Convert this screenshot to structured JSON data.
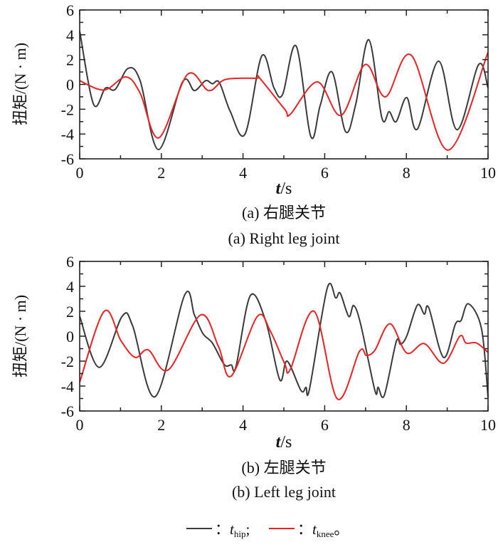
{
  "colors": {
    "hip": "#3a3a3a",
    "knee": "#ee2222"
  },
  "legend": {
    "hip_prefix": "：",
    "hip_var": "t",
    "hip_sub": "hip",
    "hip_suffix": ";",
    "knee_prefix": "：",
    "knee_var": "t",
    "knee_sub": "knee",
    "knee_suffix": "。"
  },
  "chart_data": [
    {
      "type": "line",
      "title": "(a) 右腿关节",
      "subtitle": "(a) Right leg joint",
      "xlabel_var": "t",
      "xlabel_unit": "/s",
      "ylabel": "扭矩/(N · m)",
      "xlim": [
        0,
        10
      ],
      "ylim": [
        -6,
        6
      ],
      "xticks": [
        "0",
        "2",
        "4",
        "6",
        "8",
        "10"
      ],
      "yticks": [
        "-6",
        "-4",
        "-2",
        "0",
        "2",
        "4",
        "6"
      ],
      "series": [
        {
          "name": "t_hip",
          "x": [
            0,
            0.34,
            0.63,
            0.87,
            1.19,
            1.48,
            1.93,
            2.52,
            2.81,
            3.08,
            3.25,
            3.42,
            3.69,
            4.05,
            4.46,
            4.76,
            4.97,
            5.3,
            5.66,
            5.89,
            6.18,
            6.51,
            6.76,
            7.08,
            7.4,
            7.58,
            7.75,
            8.01,
            8.27,
            8.79,
            9.24,
            9.77,
            10
          ],
          "y": [
            4.3,
            -1.6,
            -0.3,
            -0.4,
            1.3,
            0.3,
            -5.25,
            0.2,
            -0.5,
            0.3,
            0.05,
            0.15,
            -2.2,
            -4.0,
            2.3,
            -0.3,
            -0.8,
            3.1,
            -4.2,
            -1.7,
            1.0,
            -3.8,
            -1.6,
            3.6,
            -2.7,
            -2.2,
            -3.0,
            -1.06,
            -3.6,
            1.87,
            -3.65,
            1.6,
            -0.3
          ]
        },
        {
          "name": "t_knee",
          "x": [
            0,
            0.6,
            1.13,
            1.48,
            1.94,
            2.64,
            3.16,
            3.57,
            4.33,
            4.41,
            5.02,
            5.16,
            5.82,
            6.4,
            6.99,
            7.49,
            8.12,
            9.02,
            10
          ],
          "y": [
            0.3,
            -0.45,
            0.6,
            -0.7,
            -4.3,
            0.8,
            -0.5,
            0.4,
            0.5,
            0.5,
            -2.0,
            -2.4,
            0.2,
            -2.5,
            1.6,
            -1.0,
            2.35,
            -5.3,
            2.6
          ]
        }
      ]
    },
    {
      "type": "line",
      "title": "(b) 左腿关节",
      "subtitle": "(b) Left leg joint",
      "xlabel_var": "t",
      "xlabel_unit": "/s",
      "ylabel": "扭矩/(N · m)",
      "xlim": [
        0,
        10
      ],
      "ylim": [
        -6,
        6
      ],
      "xticks": [
        "0",
        "2",
        "4",
        "6",
        "8",
        "10"
      ],
      "yticks": [
        "-6",
        "-4",
        "-2",
        "0",
        "2",
        "4",
        "6"
      ],
      "series": [
        {
          "name": "t_hip",
          "x": [
            0,
            0.48,
            1.04,
            1.3,
            1.85,
            2.57,
            2.81,
            3.02,
            3.25,
            3.54,
            3.71,
            3.83,
            4.18,
            4.56,
            4.9,
            5.08,
            5.42,
            5.54,
            5.63,
            6.06,
            6.27,
            6.38,
            6.59,
            6.71,
            6.88,
            7.23,
            7.31,
            7.46,
            7.75,
            7.86,
            8.01,
            8.27,
            8.44,
            8.55,
            8.91,
            9.2,
            9.34,
            9.52,
            9.84,
            10
          ],
          "y": [
            1.6,
            -2.5,
            1.6,
            0.8,
            -4.85,
            3.3,
            1.7,
            0.2,
            -0.55,
            -2.27,
            -2.3,
            -2.4,
            3.26,
            1.16,
            -3.5,
            -2.0,
            -4.36,
            -4.1,
            -4.2,
            3.83,
            3.07,
            3.45,
            1.58,
            2.46,
            0.97,
            -4.36,
            -4.1,
            -4.74,
            -0.46,
            -0.65,
            0.02,
            2.5,
            1.77,
            2.27,
            -1.7,
            0.97,
            1.26,
            2.6,
            0.6,
            -4.9
          ]
        },
        {
          "name": "t_knee",
          "x": [
            0,
            0.6,
            1.01,
            1.36,
            1.68,
            2.17,
            2.96,
            3.4,
            3.71,
            4.35,
            4.67,
            5.02,
            5.16,
            5.74,
            6.31,
            6.85,
            7.02,
            7.23,
            7.6,
            8.01,
            8.44,
            8.91,
            9.31,
            9.46,
            9.72,
            10
          ],
          "y": [
            -3.7,
            2.0,
            -0.36,
            -1.7,
            -1.1,
            -2.7,
            1.7,
            -0.84,
            -3.2,
            1.58,
            0.4,
            -2.2,
            -2.65,
            2.0,
            -5.03,
            -1.22,
            -1.54,
            -1.12,
            1.0,
            -1.35,
            -0.6,
            -2.17,
            0,
            -0.55,
            -0.55,
            -1.3
          ]
        }
      ]
    }
  ]
}
